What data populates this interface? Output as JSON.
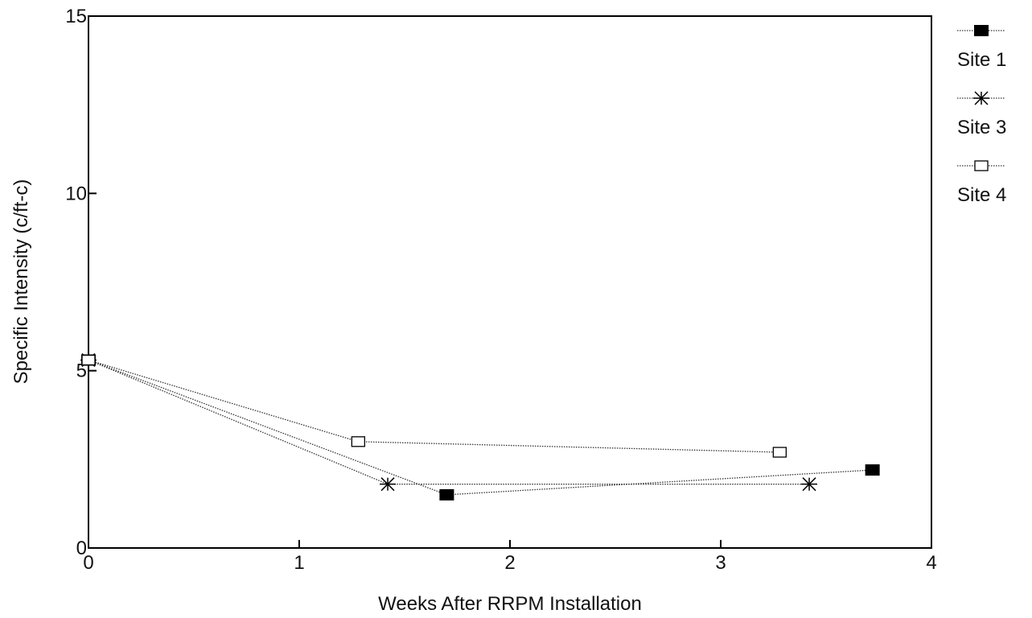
{
  "chart_data": {
    "type": "line",
    "xlabel": "Weeks After RRPM Installation",
    "ylabel": "Specific Intensity (c/ft-c)",
    "xlim": [
      0,
      4
    ],
    "ylim": [
      0,
      15
    ],
    "xticks": [
      "0",
      "1",
      "2",
      "3",
      "4"
    ],
    "yticks": [
      "0",
      "5",
      "10",
      "15"
    ],
    "grid": false,
    "legend_position": "right",
    "series": [
      {
        "name": "Site 1",
        "marker": "filled-square",
        "color": "#000000",
        "x": [
          0.0,
          1.7,
          3.72
        ],
        "y": [
          5.3,
          1.5,
          2.2
        ]
      },
      {
        "name": "Site 3",
        "marker": "asterisk",
        "color": "#000000",
        "x": [
          0.0,
          1.42,
          3.42
        ],
        "y": [
          5.3,
          1.8,
          1.8
        ]
      },
      {
        "name": "Site 4",
        "marker": "open-square",
        "color": "#000000",
        "x": [
          0.0,
          1.28,
          3.28
        ],
        "y": [
          5.3,
          3.0,
          2.7
        ]
      }
    ]
  }
}
